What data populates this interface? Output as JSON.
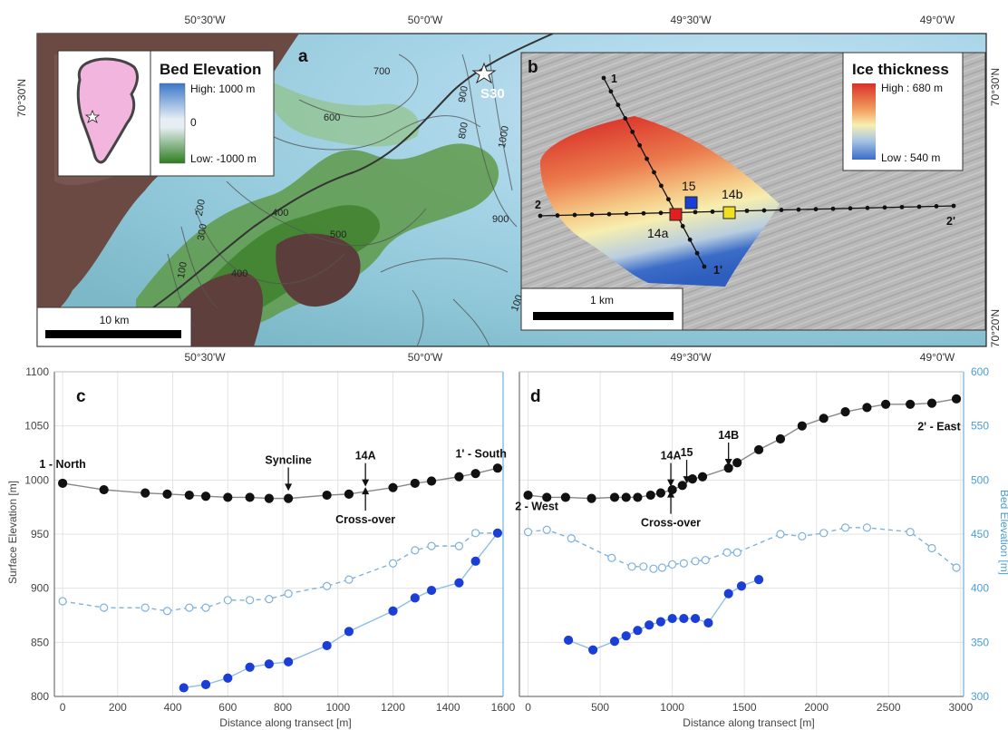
{
  "map": {
    "coords_top": [
      "50°30'W",
      "50°0'W",
      "49°30'W",
      "49°0'W"
    ],
    "coords_bottom": [
      "50°30'W",
      "50°0'W",
      "49°30'W",
      "49°0'W"
    ],
    "lat_left": "70°30'N",
    "lat_right_top": "70°30'N",
    "lat_right_bottom": "70°20'N",
    "panel_a": {
      "letter": "a",
      "legend_title": "Bed Elevation",
      "legend_high": "High: 1000 m",
      "legend_mid": "0",
      "legend_low": "Low: -1000 m",
      "scale_label": "10 km",
      "station": "S30",
      "contours": [
        "700",
        "600",
        "400",
        "500",
        "300",
        "200",
        "100",
        "400",
        "800",
        "900",
        "1000",
        "900",
        "100"
      ]
    },
    "panel_b": {
      "letter": "b",
      "legend_title": "Ice thickness",
      "legend_high": "High : 680 m",
      "legend_low": "Low : 540 m",
      "scale_label": "1 km",
      "labels": {
        "p1": "1",
        "p1b": "1'",
        "p2": "2",
        "p2b": "2'",
        "s15": "15",
        "s14a": "14a",
        "s14b": "14b"
      }
    },
    "colors": {
      "bed_high": "#3a78c8",
      "bed_low": "#2e7d1e",
      "ice_high": "#d9302a",
      "ice_low": "#3a6cc8",
      "surface": "#111111",
      "bed_series": "#1b3fd6",
      "bed_interp": "#6ca2d6",
      "marker15": "#1a3fd6",
      "marker14a": "#e02020",
      "marker14b": "#f0e020"
    }
  },
  "chart_data": [
    {
      "type": "line",
      "panel": "c",
      "xlabel": "Distance along transect [m]",
      "ylabel": "Surface Elevation [m]",
      "ylabel_right": "Bed Elevation [m]",
      "xlim": [
        -30,
        1600
      ],
      "ylim": [
        800,
        1100
      ],
      "ylim_right": [
        300,
        600
      ],
      "x_ticks": [
        0,
        200,
        400,
        600,
        800,
        1000,
        1200,
        1400,
        1600
      ],
      "y_ticks": [
        800,
        850,
        900,
        950,
        1000,
        1050,
        1100
      ],
      "grid": true,
      "series": [
        {
          "axis": "left",
          "style": "filled-black",
          "x": [
            0,
            150,
            300,
            380,
            460,
            520,
            600,
            680,
            750,
            820,
            960,
            1040,
            1200,
            1280,
            1340,
            1440,
            1500,
            1580
          ],
          "y": [
            997,
            991,
            988,
            987,
            986,
            985,
            984,
            984,
            983,
            983,
            986,
            987,
            993,
            997,
            999,
            1003,
            1006,
            1011
          ]
        },
        {
          "axis": "right",
          "style": "open-dashed",
          "x": [
            0,
            150,
            300,
            380,
            460,
            520,
            600,
            680,
            750,
            820,
            960,
            1040,
            1200,
            1280,
            1340,
            1440,
            1500,
            1580
          ],
          "y": [
            388,
            382,
            382,
            379,
            382,
            382,
            389,
            389,
            390,
            395,
            402,
            408,
            423,
            435,
            439,
            439,
            451,
            451
          ]
        },
        {
          "axis": "right",
          "style": "filled-blue",
          "x": [
            440,
            520,
            600,
            680,
            750,
            820,
            960,
            1040,
            1200,
            1280,
            1340,
            1440,
            1500,
            1580
          ],
          "y": [
            308,
            311,
            317,
            327,
            330,
            332,
            347,
            360,
            379,
            391,
            398,
            405,
            425,
            451
          ]
        }
      ],
      "annotations": [
        {
          "text": "1 - North",
          "x": 0,
          "y": 1011
        },
        {
          "text": "1' - South",
          "x": 1520,
          "y": 1021
        },
        {
          "text": "Syncline",
          "x": 820,
          "y": 1015,
          "arrow": "down"
        },
        {
          "text": "14A",
          "x": 1100,
          "y": 1019,
          "arrow": "down"
        },
        {
          "text": "Cross-over",
          "x": 1100,
          "y": 960,
          "arrow": "up"
        }
      ]
    },
    {
      "type": "line",
      "panel": "d",
      "xlabel": "Distance along transect [m]",
      "ylabel": "Surface Elevation [m]",
      "ylabel_right": "Bed Elevation [m]",
      "xlim": [
        -60,
        3020
      ],
      "ylim": [
        800,
        1100
      ],
      "ylim_right": [
        300,
        600
      ],
      "x_ticks": [
        0,
        500,
        1000,
        1500,
        2000,
        2500,
        3000
      ],
      "y_ticks_right": [
        300,
        350,
        400,
        450,
        500,
        550,
        600
      ],
      "grid": true,
      "series": [
        {
          "axis": "left",
          "style": "filled-black",
          "x": [
            0,
            130,
            260,
            440,
            600,
            680,
            760,
            850,
            920,
            1000,
            1070,
            1140,
            1210,
            1390,
            1450,
            1600,
            1750,
            1900,
            2050,
            2200,
            2350,
            2480,
            2650,
            2800,
            2970
          ],
          "y": [
            986,
            984,
            984,
            983,
            984,
            984,
            984,
            986,
            988,
            991,
            995,
            1001,
            1003,
            1011,
            1016,
            1028,
            1038,
            1050,
            1057,
            1063,
            1067,
            1070,
            1070,
            1071,
            1075
          ]
        },
        {
          "axis": "right",
          "style": "open-dashed",
          "x": [
            0,
            130,
            300,
            580,
            720,
            800,
            870,
            930,
            1000,
            1080,
            1160,
            1230,
            1380,
            1450,
            1750,
            1900,
            2050,
            2200,
            2350,
            2650,
            2800,
            2970
          ],
          "y": [
            452,
            454,
            446,
            428,
            420,
            420,
            418,
            419,
            422,
            423,
            425,
            426,
            433,
            433,
            450,
            448,
            451,
            456,
            456,
            452,
            437,
            419
          ]
        },
        {
          "axis": "right",
          "style": "filled-blue",
          "x": [
            280,
            450,
            600,
            680,
            760,
            840,
            920,
            1000,
            1080,
            1160,
            1250,
            1390,
            1480,
            1600
          ],
          "y": [
            352,
            343,
            351,
            356,
            361,
            366,
            369,
            372,
            372,
            372,
            368,
            395,
            402,
            408
          ]
        }
      ],
      "annotations": [
        {
          "text": "2 - West",
          "x": 60,
          "y": 972
        },
        {
          "text": "2' - East",
          "x": 2850,
          "y": 1046
        },
        {
          "text": "14A",
          "x": 990,
          "y": 1019,
          "arrow": "down"
        },
        {
          "text": "15",
          "x": 1100,
          "y": 1022,
          "arrow": "down"
        },
        {
          "text": "14B",
          "x": 1390,
          "y": 1038,
          "arrow": "down"
        },
        {
          "text": "Cross-over",
          "x": 990,
          "y": 957,
          "arrow": "up"
        }
      ]
    }
  ]
}
